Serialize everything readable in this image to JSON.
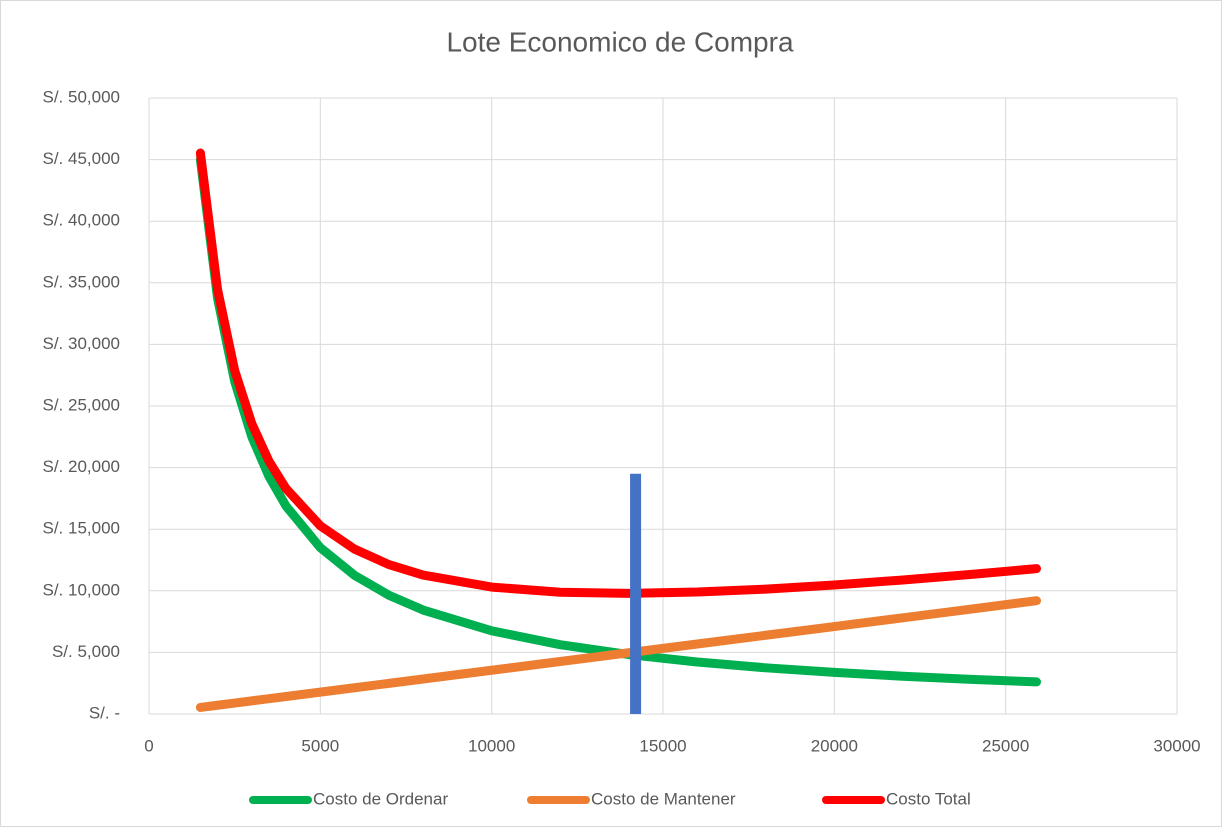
{
  "chart_data": {
    "type": "line",
    "title": "Lote Economico de Compra",
    "x": [
      1500,
      2000,
      2500,
      3000,
      3500,
      4000,
      5000,
      6000,
      7000,
      8000,
      10000,
      12000,
      14000,
      16000,
      18000,
      20000,
      22000,
      24000,
      25900
    ],
    "series": [
      {
        "name": "Costo de Ordenar",
        "color": "#00b050",
        "values": [
          45000,
          33750,
          27000,
          22500,
          19286,
          16875,
          13500,
          11250,
          9643,
          8438,
          6750,
          5625,
          4821,
          4219,
          3750,
          3375,
          3068,
          2813,
          2606
        ]
      },
      {
        "name": "Costo de Mantener",
        "color": "#ed7d31",
        "values": [
          533,
          710,
          888,
          1065,
          1243,
          1420,
          1775,
          2130,
          2485,
          2840,
          3550,
          4260,
          4970,
          5680,
          6390,
          7100,
          7810,
          8520,
          9195
        ]
      },
      {
        "name": "Costo Total",
        "color": "#ff0000",
        "values": [
          45533,
          34460,
          27888,
          23565,
          20529,
          18295,
          15275,
          13380,
          12128,
          11278,
          10300,
          9885,
          9791,
          9899,
          10140,
          10475,
          10878,
          11333,
          11801
        ]
      }
    ],
    "eoq_line": {
      "x": 14200,
      "y": [
        0,
        19500
      ],
      "color": "#4472c4"
    },
    "xlim": [
      0,
      30000
    ],
    "xticks": [
      0,
      5000,
      10000,
      15000,
      20000,
      25000,
      30000
    ],
    "ylim": [
      0,
      50000
    ],
    "yticks": [
      {
        "value": 0,
        "label": "S/. -"
      },
      {
        "value": 5000,
        "label": "S/. 5,000"
      },
      {
        "value": 10000,
        "label": "S/. 10,000"
      },
      {
        "value": 15000,
        "label": "S/. 15,000"
      },
      {
        "value": 20000,
        "label": "S/. 20,000"
      },
      {
        "value": 25000,
        "label": "S/. 25,000"
      },
      {
        "value": 30000,
        "label": "S/. 30,000"
      },
      {
        "value": 35000,
        "label": "S/. 35,000"
      },
      {
        "value": 40000,
        "label": "S/. 40,000"
      },
      {
        "value": 45000,
        "label": "S/. 45,000"
      },
      {
        "value": 50000,
        "label": "S/. 50,000"
      }
    ],
    "grid": true,
    "legend": "bottom"
  }
}
